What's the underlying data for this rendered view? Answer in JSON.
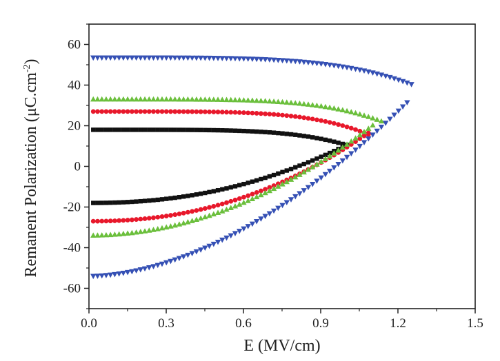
{
  "chart_data": {
    "type": "scatter",
    "title": "",
    "xlabel": "E (MV/cm)",
    "ylabel_main": "Remanent Polarization (μC.cm",
    "ylabel_sup": "-2",
    "ylabel_close": ")",
    "xlim": [
      0,
      1.5
    ],
    "ylim": [
      -70,
      70
    ],
    "x_ticks": [
      0.0,
      0.3,
      0.6,
      0.9,
      1.2,
      1.5
    ],
    "x_tick_labels": [
      "0.0",
      "0.3",
      "0.6",
      "0.9",
      "1.2",
      "1.5"
    ],
    "y_ticks": [
      -60,
      -40,
      -20,
      0,
      20,
      40,
      60
    ],
    "y_tick_labels": [
      "-60",
      "-40",
      "-20",
      "0",
      "20",
      "40",
      "60"
    ],
    "grid": false,
    "legend": "none",
    "series": [
      {
        "name": "black squares",
        "marker": "square",
        "color": "#111111",
        "upper": {
          "x_max": 1.0,
          "y_start": 18.0,
          "y_end": 10.5,
          "shape": 5
        },
        "lower": {
          "x_max": 1.0,
          "y_start": -18.0,
          "y_end": 10.5,
          "shape": 2.2
        }
      },
      {
        "name": "red circles",
        "marker": "circle",
        "color": "#e8182b",
        "upper": {
          "x_max": 1.08,
          "y_start": 27.0,
          "y_end": 16.0,
          "shape": 5
        },
        "lower": {
          "x_max": 1.08,
          "y_start": -27.0,
          "y_end": 16.0,
          "shape": 2.2
        }
      },
      {
        "name": "green up-triangles",
        "marker": "triangle-up",
        "color": "#6bbf3c",
        "upper": {
          "x_max": 1.14,
          "y_start": 33.0,
          "y_end": 22.0,
          "shape": 5
        },
        "lower": {
          "x_max": 1.1,
          "y_start": -34.0,
          "y_end": 20.0,
          "shape": 2.0
        }
      },
      {
        "name": "blue down-triangles",
        "marker": "triangle-down",
        "color": "#3550b4",
        "upper": {
          "x_max": 1.25,
          "y_start": 53.5,
          "y_end": 40.5,
          "shape": 4.5
        },
        "lower": {
          "x_max": 1.24,
          "y_start": -54.0,
          "y_end": 32.0,
          "shape": 1.8
        }
      }
    ]
  }
}
